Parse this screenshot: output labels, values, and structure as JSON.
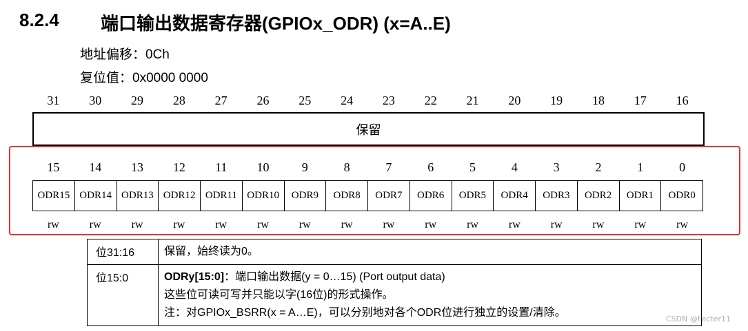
{
  "section": {
    "number": "8.2.4",
    "title": "端口输出数据寄存器(GPIOx_ODR) (x=A..E)",
    "offset": "地址偏移：0Ch",
    "reset": "复位值：0x0000 0000"
  },
  "register": {
    "bits_high": [
      "31",
      "30",
      "29",
      "28",
      "27",
      "26",
      "25",
      "24",
      "23",
      "22",
      "21",
      "20",
      "19",
      "18",
      "17",
      "16"
    ],
    "reserved_label": "保留",
    "bits_low": [
      "15",
      "14",
      "13",
      "12",
      "11",
      "10",
      "9",
      "8",
      "7",
      "6",
      "5",
      "4",
      "3",
      "2",
      "1",
      "0"
    ],
    "fields": [
      "ODR15",
      "ODR14",
      "ODR13",
      "ODR12",
      "ODR11",
      "ODR10",
      "ODR9",
      "ODR8",
      "ODR7",
      "ODR6",
      "ODR5",
      "ODR4",
      "ODR3",
      "ODR2",
      "ODR1",
      "ODR0"
    ],
    "access": [
      "rw",
      "rw",
      "rw",
      "rw",
      "rw",
      "rw",
      "rw",
      "rw",
      "rw",
      "rw",
      "rw",
      "rw",
      "rw",
      "rw",
      "rw",
      "rw"
    ]
  },
  "highlight_color": "#e8322e",
  "description": {
    "rows": [
      {
        "bits": "位31:16",
        "text": "保留，始终读为0。"
      },
      {
        "bits": "位15:0",
        "name": "ODRy[15:0]",
        "line1_rest": "：端口输出数据(y = 0…15) (Port output data)",
        "line2": "这些位可读可写并只能以字(16位)的形式操作。",
        "line3": "注：对GPIOx_BSRR(x = A…E)，可以分别地对各个ODR位进行独立的设置/清除。"
      }
    ]
  },
  "watermark": "CSDN @Fecter11"
}
